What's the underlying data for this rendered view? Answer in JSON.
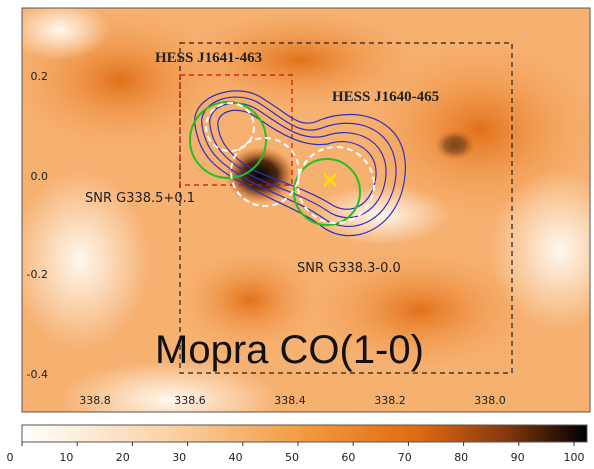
{
  "figure": {
    "labels": {
      "source_a": "HESS J1641-463",
      "source_b": "HESS J1640-465",
      "snr_a": "SNR G338.5+0.1",
      "snr_b": "SNR G338.3-0.0",
      "tracer": "Mopra CO(1-0)"
    },
    "y_axis_ticks": [
      "0.2",
      "0.0",
      "-0.2",
      "-0.4"
    ],
    "x_axis_ticks": [
      "338.8",
      "338.6",
      "338.4",
      "338.2",
      "338.0"
    ],
    "colorbar_ticks": [
      "0",
      "10",
      "20",
      "30",
      "40",
      "50",
      "60",
      "70",
      "80",
      "90",
      "100"
    ]
  }
}
